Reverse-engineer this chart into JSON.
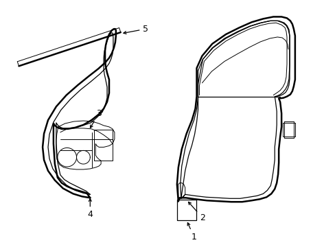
{
  "background_color": "#ffffff",
  "line_color": "#000000",
  "lw_outer": 1.8,
  "lw_inner": 0.9,
  "lw_thin": 0.7,
  "label_fontsize": 9,
  "figure_width": 4.89,
  "figure_height": 3.6,
  "dpi": 100
}
